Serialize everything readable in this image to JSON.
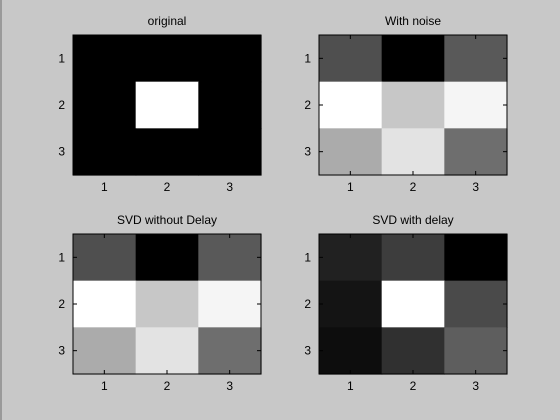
{
  "chart_data": [
    {
      "type": "heatmap",
      "title": "original",
      "x_ticks": [
        "1",
        "2",
        "3"
      ],
      "y_ticks": [
        "1",
        "2",
        "3"
      ],
      "colormap": "gray",
      "clim": [
        0,
        1
      ],
      "values": [
        [
          0.0,
          0.0,
          0.0
        ],
        [
          0.0,
          1.0,
          0.0
        ],
        [
          0.0,
          0.0,
          0.0
        ]
      ]
    },
    {
      "type": "heatmap",
      "title": "With noise",
      "x_ticks": [
        "1",
        "2",
        "3"
      ],
      "y_ticks": [
        "1",
        "2",
        "3"
      ],
      "colormap": "gray",
      "clim": [
        0,
        1
      ],
      "values": [
        [
          0.31,
          0.0,
          0.35
        ],
        [
          1.0,
          0.78,
          0.96
        ],
        [
          0.67,
          0.89,
          0.43
        ]
      ]
    },
    {
      "type": "heatmap",
      "title": "SVD without Delay",
      "x_ticks": [
        "1",
        "2",
        "3"
      ],
      "y_ticks": [
        "1",
        "2",
        "3"
      ],
      "colormap": "gray",
      "clim": [
        0,
        1
      ],
      "values": [
        [
          0.31,
          0.0,
          0.35
        ],
        [
          1.0,
          0.78,
          0.96
        ],
        [
          0.67,
          0.89,
          0.43
        ]
      ]
    },
    {
      "type": "heatmap",
      "title": "SVD with delay",
      "x_ticks": [
        "1",
        "2",
        "3"
      ],
      "y_ticks": [
        "1",
        "2",
        "3"
      ],
      "colormap": "gray",
      "clim": [
        0,
        1
      ],
      "values": [
        [
          0.13,
          0.24,
          0.0
        ],
        [
          0.08,
          1.0,
          0.29
        ],
        [
          0.05,
          0.19,
          0.37
        ]
      ]
    }
  ]
}
